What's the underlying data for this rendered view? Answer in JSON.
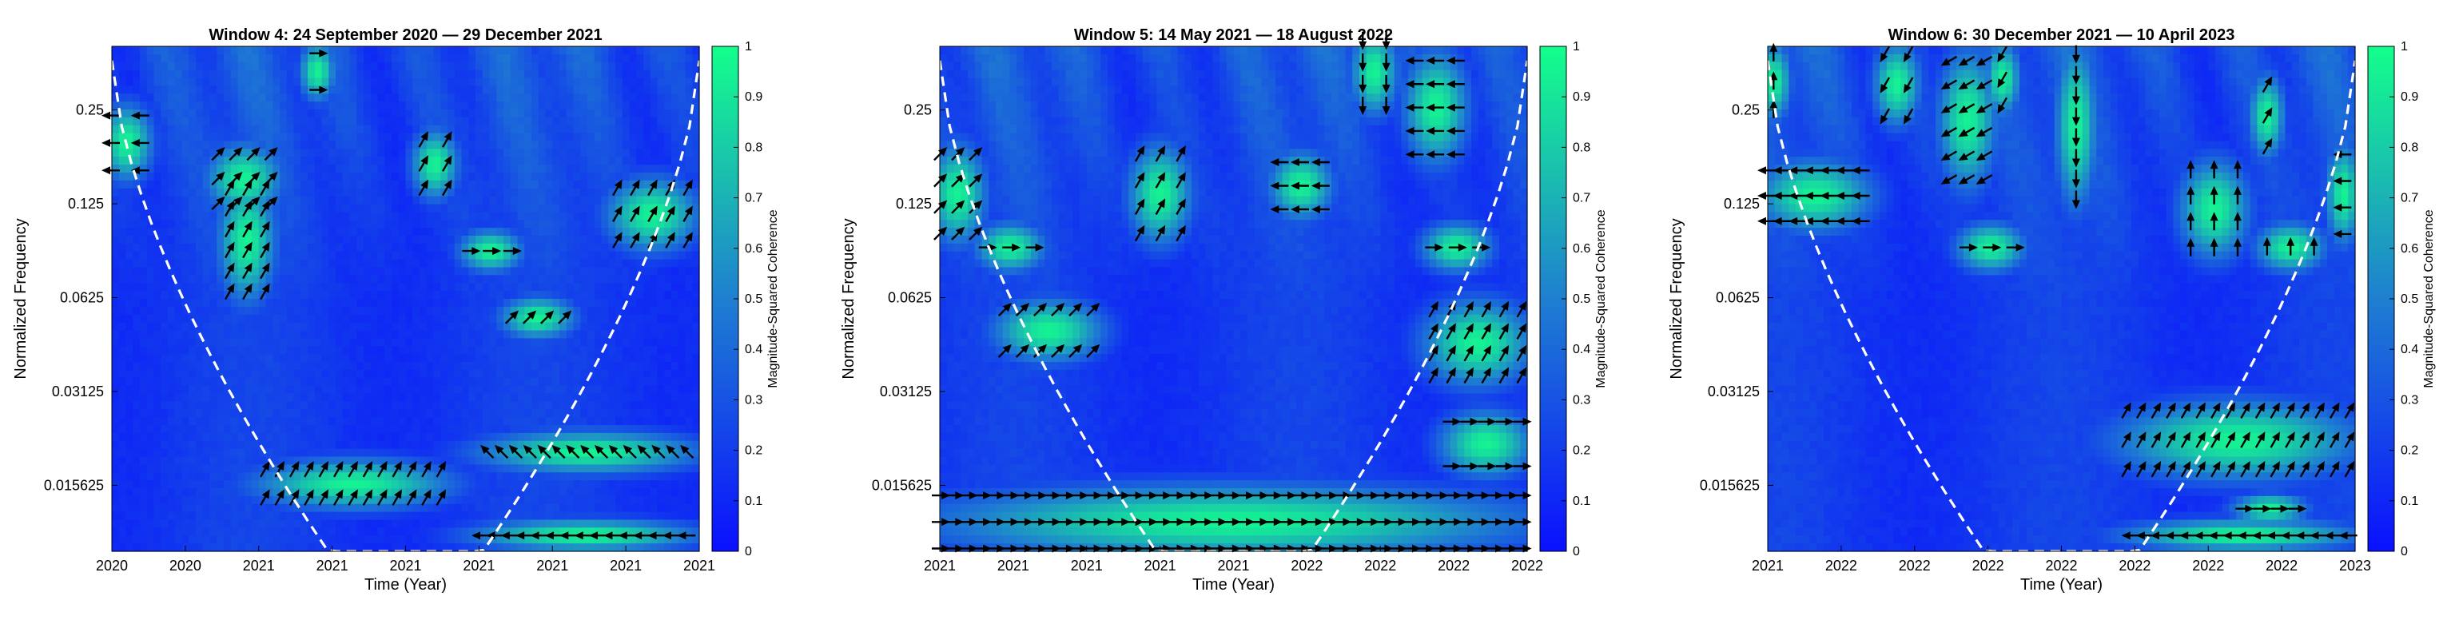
{
  "colors": {
    "low": "#0a10ff",
    "mid": "#1f7fd0",
    "high": "#14ff8c",
    "coi": "#ffffff",
    "arrow": "#000000"
  },
  "chart_data": [
    {
      "type": "heatmap",
      "title": "Window 4: 24 September 2020 — 29 December 2021",
      "xlabel": "Time (Year)",
      "ylabel": "Normalized Frequency",
      "x_ticks": [
        "2020",
        "2020",
        "2021",
        "2021",
        "2021",
        "2021",
        "2021",
        "2021",
        "2021"
      ],
      "y_ticks": [
        "0.25",
        "0.125",
        "0.0625",
        "0.03125",
        "0.015625"
      ],
      "colorbar": {
        "label": "Magnitude-Squared Coherence",
        "min": 0,
        "max": 1,
        "ticks": [
          "0",
          "0.1",
          "0.2",
          "0.3",
          "0.4",
          "0.5",
          "0.6",
          "0.7",
          "0.8",
          "0.9",
          "1"
        ]
      },
      "cone_of_influence": true,
      "coherence_regions": [
        {
          "t": [
            0.18,
            0.27
          ],
          "f": [
            0.125,
            0.18
          ],
          "arrow_deg": 45
        },
        {
          "t": [
            0.2,
            0.26
          ],
          "f": [
            0.065,
            0.14
          ],
          "arrow_deg": 60
        },
        {
          "t": [
            0.53,
            0.57
          ],
          "f": [
            0.14,
            0.2
          ],
          "arrow_deg": 60
        },
        {
          "t": [
            0.61,
            0.68
          ],
          "f": [
            0.082,
            0.095
          ],
          "arrow_deg": 0
        },
        {
          "t": [
            0.68,
            0.77
          ],
          "f": [
            0.05,
            0.058
          ],
          "arrow_deg": 45
        },
        {
          "t": [
            0.86,
            0.98
          ],
          "f": [
            0.095,
            0.14
          ],
          "arrow_deg": 60
        },
        {
          "t": [
            0.0,
            0.05
          ],
          "f": [
            0.16,
            0.24
          ],
          "arrow_deg": 180
        },
        {
          "t": [
            0.34,
            0.36
          ],
          "f": [
            0.29,
            0.38
          ],
          "arrow_deg": 0
        },
        {
          "t": [
            0.26,
            0.56
          ],
          "f": [
            0.0142,
            0.0175
          ],
          "arrow_deg": 60
        },
        {
          "t": [
            0.64,
            0.98
          ],
          "f": [
            0.0185,
            0.0215
          ],
          "arrow_deg": 135
        },
        {
          "t": [
            0.63,
            0.98
          ],
          "f": [
            0.0104,
            0.0112
          ],
          "arrow_deg": 180
        }
      ]
    },
    {
      "type": "heatmap",
      "title": "Window 5: 14 May 2021 — 18 August 2022",
      "xlabel": "Time (Year)",
      "ylabel": "Normalized Frequency",
      "x_ticks": [
        "2021",
        "2021",
        "2021",
        "2021",
        "2021",
        "2022",
        "2022",
        "2022",
        "2022"
      ],
      "y_ticks": [
        "0.25",
        "0.125",
        "0.0625",
        "0.03125",
        "0.015625"
      ],
      "colorbar": {
        "label": "Magnitude-Squared Coherence",
        "min": 0,
        "max": 1,
        "ticks": [
          "0",
          "0.1",
          "0.2",
          "0.3",
          "0.4",
          "0.5",
          "0.6",
          "0.7",
          "0.8",
          "0.9",
          "1"
        ]
      },
      "cone_of_influence": true,
      "coherence_regions": [
        {
          "t": [
            0.0,
            0.06
          ],
          "f": [
            0.1,
            0.18
          ],
          "arrow_deg": 45
        },
        {
          "t": [
            0.08,
            0.16
          ],
          "f": [
            0.082,
            0.1
          ],
          "arrow_deg": 0
        },
        {
          "t": [
            0.11,
            0.26
          ],
          "f": [
            0.042,
            0.057
          ],
          "arrow_deg": 45
        },
        {
          "t": [
            0.34,
            0.41
          ],
          "f": [
            0.1,
            0.18
          ],
          "arrow_deg": 60
        },
        {
          "t": [
            0.58,
            0.65
          ],
          "f": [
            0.12,
            0.17
          ],
          "arrow_deg": 180
        },
        {
          "t": [
            0.72,
            0.76
          ],
          "f": [
            0.26,
            0.42
          ],
          "arrow_deg": 270
        },
        {
          "t": [
            0.81,
            0.88
          ],
          "f": [
            0.18,
            0.36
          ],
          "arrow_deg": 180
        },
        {
          "t": [
            0.84,
            0.92
          ],
          "f": [
            0.082,
            0.1
          ],
          "arrow_deg": 0
        },
        {
          "t": [
            0.84,
            0.99
          ],
          "f": [
            0.035,
            0.057
          ],
          "arrow_deg": 60
        },
        {
          "t": [
            0.87,
            0.99
          ],
          "f": [
            0.018,
            0.025
          ],
          "arrow_deg": 0
        },
        {
          "t": [
            0.0,
            0.99
          ],
          "f": [
            0.0098,
            0.0145
          ],
          "arrow_deg": 0
        }
      ]
    },
    {
      "type": "heatmap",
      "title": "Window 6: 30 December 2021 — 10 April 2023",
      "xlabel": "Time (Year)",
      "ylabel": "Normalized Frequency",
      "x_ticks": [
        "2021",
        "2022",
        "2022",
        "2022",
        "2022",
        "2022",
        "2022",
        "2022",
        "2023"
      ],
      "y_ticks": [
        "0.25",
        "0.125",
        "0.0625",
        "0.03125",
        "0.015625"
      ],
      "colorbar": {
        "label": "Magnitude-Squared Coherence",
        "min": 0,
        "max": 1,
        "ticks": [
          "0",
          "0.1",
          "0.2",
          "0.3",
          "0.4",
          "0.5",
          "0.6",
          "0.7",
          "0.8",
          "0.9",
          "1"
        ]
      },
      "cone_of_influence": true,
      "coherence_regions": [
        {
          "t": [
            0.0,
            0.02
          ],
          "f": [
            0.25,
            0.38
          ],
          "arrow_deg": 90
        },
        {
          "t": [
            0.0,
            0.16
          ],
          "f": [
            0.11,
            0.16
          ],
          "arrow_deg": 180
        },
        {
          "t": [
            0.2,
            0.24
          ],
          "f": [
            0.24,
            0.38
          ],
          "arrow_deg": 240
        },
        {
          "t": [
            0.31,
            0.37
          ],
          "f": [
            0.15,
            0.36
          ],
          "arrow_deg": 210
        },
        {
          "t": [
            0.39,
            0.41
          ],
          "f": [
            0.26,
            0.38
          ],
          "arrow_deg": 240
        },
        {
          "t": [
            0.34,
            0.42
          ],
          "f": [
            0.082,
            0.1
          ],
          "arrow_deg": 0
        },
        {
          "t": [
            0.51,
            0.54
          ],
          "f": [
            0.13,
            0.38
          ],
          "arrow_deg": 270
        },
        {
          "t": [
            0.72,
            0.8
          ],
          "f": [
            0.09,
            0.16
          ],
          "arrow_deg": 90
        },
        {
          "t": [
            0.84,
            0.86
          ],
          "f": [
            0.19,
            0.3
          ],
          "arrow_deg": 60
        },
        {
          "t": [
            0.85,
            0.93
          ],
          "f": [
            0.082,
            0.1
          ],
          "arrow_deg": 90
        },
        {
          "t": [
            0.97,
            0.99
          ],
          "f": [
            0.1,
            0.18
          ],
          "arrow_deg": 180
        },
        {
          "t": [
            0.61,
            0.99
          ],
          "f": [
            0.0175,
            0.027
          ],
          "arrow_deg": 60
        },
        {
          "t": [
            0.62,
            0.99
          ],
          "f": [
            0.0104,
            0.0112
          ],
          "arrow_deg": 180
        },
        {
          "t": [
            0.81,
            0.9
          ],
          "f": [
            0.0128,
            0.0135
          ],
          "arrow_deg": 0
        }
      ]
    }
  ]
}
